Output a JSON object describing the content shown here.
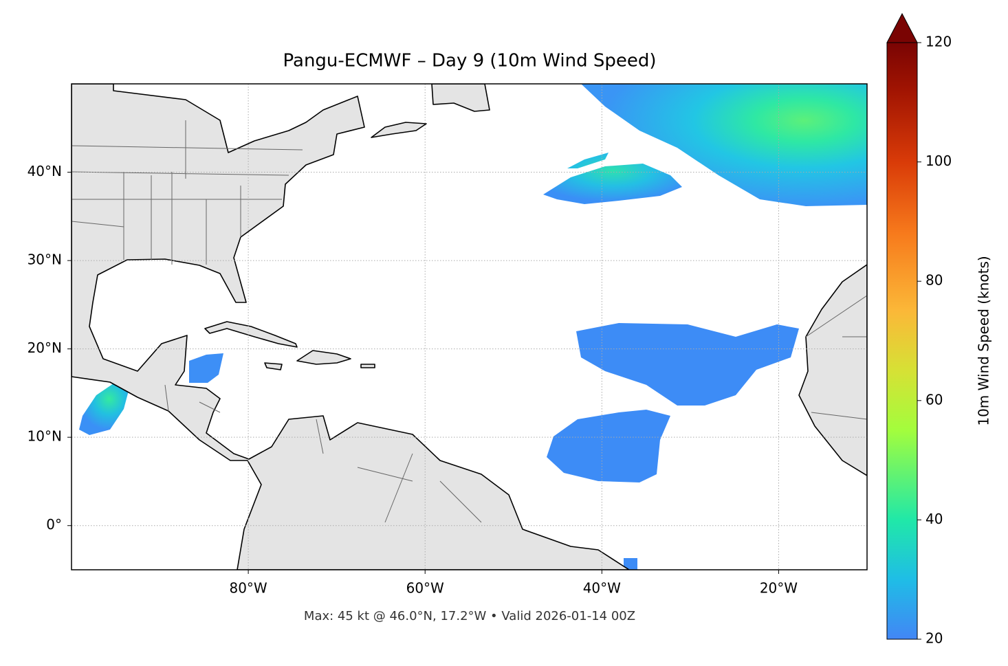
{
  "chart_data": {
    "type": "map",
    "title": "Pangu-ECMWF – Day 9 (10m Wind Speed)",
    "xlim": [
      -100,
      -10
    ],
    "ylim": [
      -5,
      50
    ],
    "xticks": [
      {
        "value": -80,
        "label": "80°W"
      },
      {
        "value": -60,
        "label": "60°W"
      },
      {
        "value": -40,
        "label": "40°W"
      },
      {
        "value": -20,
        "label": "20°W"
      }
    ],
    "yticks": [
      {
        "value": 0,
        "label": "0°"
      },
      {
        "value": 10,
        "label": "10°N"
      },
      {
        "value": 20,
        "label": "20°N"
      },
      {
        "value": 30,
        "label": "30°N"
      },
      {
        "value": 40,
        "label": "40°N"
      }
    ],
    "grid": true,
    "colorbar": {
      "label": "10m Wind Speed (knots)",
      "lim": [
        20,
        120
      ],
      "ticks": [
        20,
        40,
        60,
        80,
        100,
        120
      ],
      "extend": "max"
    },
    "annotation": "Max: 45 kt @ 46.0°N, 17.2°W • Valid 2026-01-14 00Z"
  }
}
